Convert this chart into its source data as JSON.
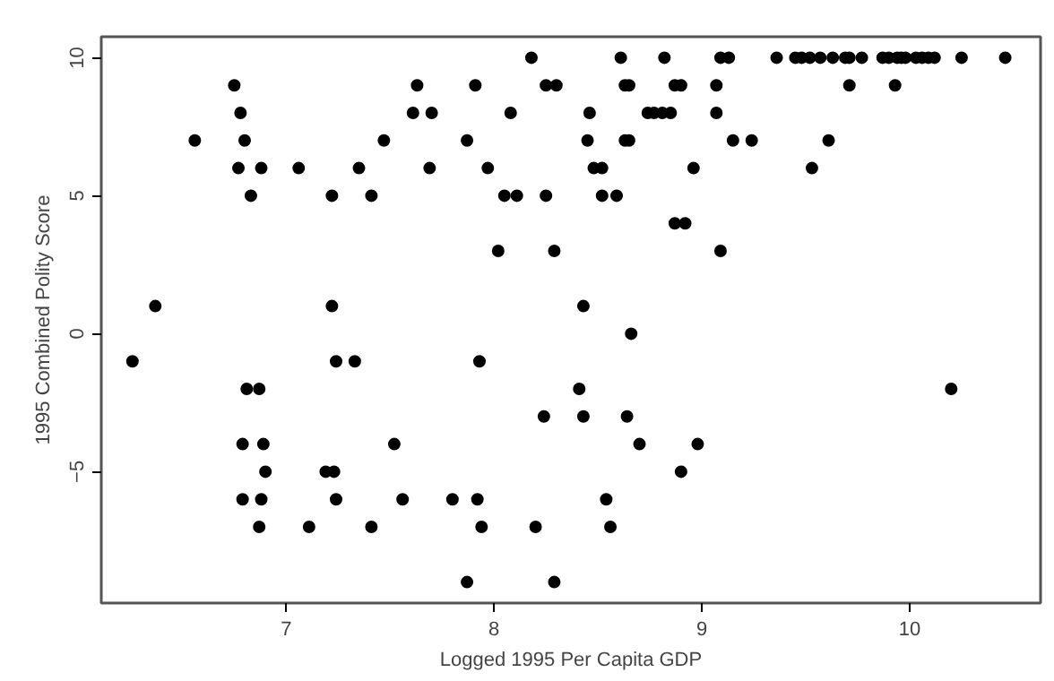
{
  "chart_data": {
    "type": "scatter",
    "xlabel": "Logged 1995 Per Capita GDP",
    "ylabel": "1995 Combined Polity Score",
    "xlim": [
      6.11,
      10.63
    ],
    "ylim": [
      -9.76,
      10.76
    ],
    "xticks": [
      7,
      8,
      9,
      10
    ],
    "yticks": [
      -5,
      0,
      5,
      10
    ],
    "grid": false,
    "marker": "circle",
    "series": [
      {
        "color": "#000000",
        "x": [
          8.18,
          8.61,
          8.82,
          9.09,
          9.13,
          9.36,
          9.45,
          9.48,
          9.52,
          9.57,
          9.63,
          9.69,
          9.71,
          9.77,
          9.87,
          9.9,
          9.94,
          9.96,
          9.98,
          10.03,
          10.06,
          10.09,
          10.12,
          10.25,
          10.46,
          6.75,
          7.63,
          7.91,
          8.25,
          8.3,
          8.63,
          8.65,
          8.87,
          8.9,
          9.07,
          9.71,
          9.93,
          6.78,
          7.61,
          7.7,
          8.08,
          8.46,
          8.74,
          8.77,
          8.81,
          8.85,
          9.07,
          6.56,
          6.8,
          7.47,
          7.87,
          8.45,
          8.63,
          8.65,
          9.15,
          9.24,
          9.61,
          6.77,
          6.88,
          7.06,
          7.35,
          7.69,
          7.97,
          8.48,
          8.52,
          8.96,
          9.53,
          6.83,
          7.22,
          7.41,
          8.05,
          8.11,
          8.25,
          8.52,
          8.59,
          8.87,
          8.92,
          8.02,
          8.29,
          9.09,
          6.37,
          7.22,
          8.43,
          8.66,
          6.26,
          7.24,
          7.33,
          7.93,
          6.81,
          6.87,
          8.41,
          10.2,
          8.24,
          8.43,
          8.64,
          6.79,
          6.89,
          7.52,
          8.7,
          8.98,
          6.9,
          7.19,
          7.23,
          8.9,
          6.79,
          6.88,
          7.24,
          7.56,
          7.8,
          7.92,
          8.54,
          6.87,
          7.11,
          7.41,
          7.94,
          8.2,
          8.56,
          7.87,
          8.29
        ],
        "values": [
          10,
          10,
          10,
          10,
          10,
          10,
          10,
          10,
          10,
          10,
          10,
          10,
          10,
          10,
          10,
          10,
          10,
          10,
          10,
          10,
          10,
          10,
          10,
          10,
          10,
          9,
          9,
          9,
          9,
          9,
          9,
          9,
          9,
          9,
          9,
          9,
          9,
          8,
          8,
          8,
          8,
          8,
          8,
          8,
          8,
          8,
          8,
          7,
          7,
          7,
          7,
          7,
          7,
          7,
          7,
          7,
          7,
          6,
          6,
          6,
          6,
          6,
          6,
          6,
          6,
          6,
          6,
          5,
          5,
          5,
          5,
          5,
          5,
          5,
          5,
          4,
          4,
          3,
          3,
          3,
          1,
          1,
          1,
          0,
          -1,
          -1,
          -1,
          -1,
          -2,
          -2,
          -2,
          -2,
          -3,
          -3,
          -3,
          -4,
          -4,
          -4,
          -4,
          -4,
          -5,
          -5,
          -5,
          -5,
          -6,
          -6,
          -6,
          -6,
          -6,
          -6,
          -6,
          -7,
          -7,
          -7,
          -7,
          -7,
          -7,
          -9,
          -9
        ]
      }
    ]
  }
}
